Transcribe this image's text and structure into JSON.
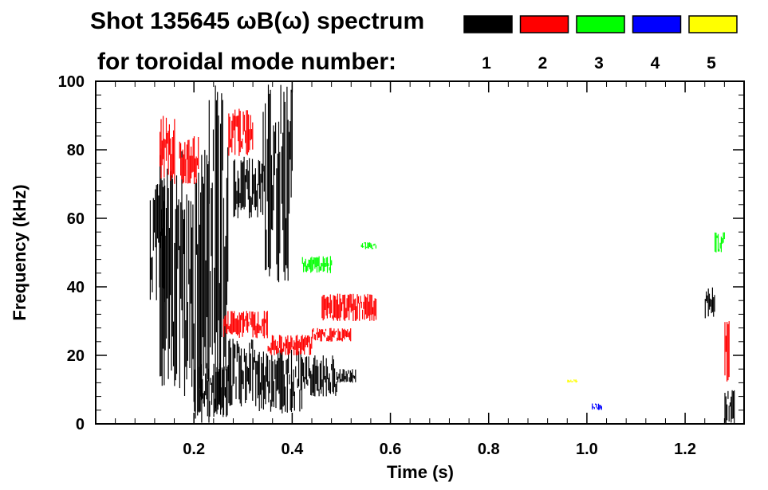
{
  "chart_data": {
    "type": "scatter",
    "title_line1": "Shot 135645 ωB(ω) spectrum",
    "title_line2": "for toroidal mode number:",
    "xlabel": "Time (s)",
    "ylabel": "Frequency (kHz)",
    "xlim": [
      0.0,
      1.32
    ],
    "ylim": [
      0,
      100
    ],
    "xticks": [
      0.2,
      0.4,
      0.6,
      0.8,
      1.0,
      1.2
    ],
    "xtick_labels": [
      "0.2",
      "0.4",
      "0.6",
      "0.8",
      "1.0",
      "1.2"
    ],
    "yticks": [
      0,
      20,
      40,
      60,
      80,
      100
    ],
    "ytick_labels": [
      "0",
      "20",
      "40",
      "60",
      "80",
      "100"
    ],
    "grid": false,
    "legend_placement": "top-right",
    "legend": [
      {
        "label": "1",
        "color": "#000000"
      },
      {
        "label": "2",
        "color": "#ff0000"
      },
      {
        "label": "3",
        "color": "#00ff00"
      },
      {
        "label": "4",
        "color": "#0000ff"
      },
      {
        "label": "5",
        "color": "#ffff00"
      }
    ],
    "series": [
      {
        "name": "1",
        "color": "#000000",
        "regions": [
          {
            "x": [
              0.11,
              0.14
            ],
            "y": [
              35,
              70
            ]
          },
          {
            "x": [
              0.13,
              0.18
            ],
            "y": [
              10,
              84
            ]
          },
          {
            "x": [
              0.18,
              0.2
            ],
            "y": [
              5,
              70
            ]
          },
          {
            "x": [
              0.2,
              0.23
            ],
            "y": [
              0,
              80
            ]
          },
          {
            "x": [
              0.23,
              0.27
            ],
            "y": [
              2,
              100
            ]
          },
          {
            "x": [
              0.21,
              0.27
            ],
            "y": [
              2,
              18
            ]
          },
          {
            "x": [
              0.27,
              0.33
            ],
            "y": [
              5,
              25
            ]
          },
          {
            "x": [
              0.28,
              0.34
            ],
            "y": [
              60,
              78
            ]
          },
          {
            "x": [
              0.33,
              0.42
            ],
            "y": [
              3,
              22
            ]
          },
          {
            "x": [
              0.42,
              0.49
            ],
            "y": [
              8,
              20
            ]
          },
          {
            "x": [
              0.49,
              0.53
            ],
            "y": [
              12,
              16
            ]
          },
          {
            "x": [
              0.34,
              0.4
            ],
            "y": [
              40,
              100
            ]
          },
          {
            "x": [
              1.24,
              1.26
            ],
            "y": [
              30,
              40
            ]
          },
          {
            "x": [
              1.28,
              1.3
            ],
            "y": [
              0,
              10
            ]
          }
        ]
      },
      {
        "name": "2",
        "color": "#ff0000",
        "regions": [
          {
            "x": [
              0.13,
              0.16
            ],
            "y": [
              70,
              90
            ]
          },
          {
            "x": [
              0.17,
              0.21
            ],
            "y": [
              70,
              84
            ]
          },
          {
            "x": [
              0.27,
              0.32
            ],
            "y": [
              78,
              92
            ]
          },
          {
            "x": [
              0.26,
              0.35
            ],
            "y": [
              25,
              33
            ]
          },
          {
            "x": [
              0.35,
              0.44
            ],
            "y": [
              20,
              26
            ]
          },
          {
            "x": [
              0.44,
              0.52
            ],
            "y": [
              24,
              28
            ]
          },
          {
            "x": [
              0.46,
              0.57
            ],
            "y": [
              30,
              38
            ]
          },
          {
            "x": [
              1.28,
              1.29
            ],
            "y": [
              12,
              30
            ]
          }
        ]
      },
      {
        "name": "3",
        "color": "#00ff00",
        "regions": [
          {
            "x": [
              0.42,
              0.48
            ],
            "y": [
              44,
              49
            ]
          },
          {
            "x": [
              0.54,
              0.57
            ],
            "y": [
              51,
              53
            ]
          },
          {
            "x": [
              1.26,
              1.28
            ],
            "y": [
              50,
              56
            ]
          }
        ]
      },
      {
        "name": "4",
        "color": "#0000ff",
        "regions": [
          {
            "x": [
              1.01,
              1.03
            ],
            "y": [
              4,
              6
            ]
          }
        ]
      },
      {
        "name": "5",
        "color": "#ffff00",
        "regions": [
          {
            "x": [
              0.96,
              0.98
            ],
            "y": [
              12,
              13
            ]
          }
        ]
      }
    ]
  }
}
